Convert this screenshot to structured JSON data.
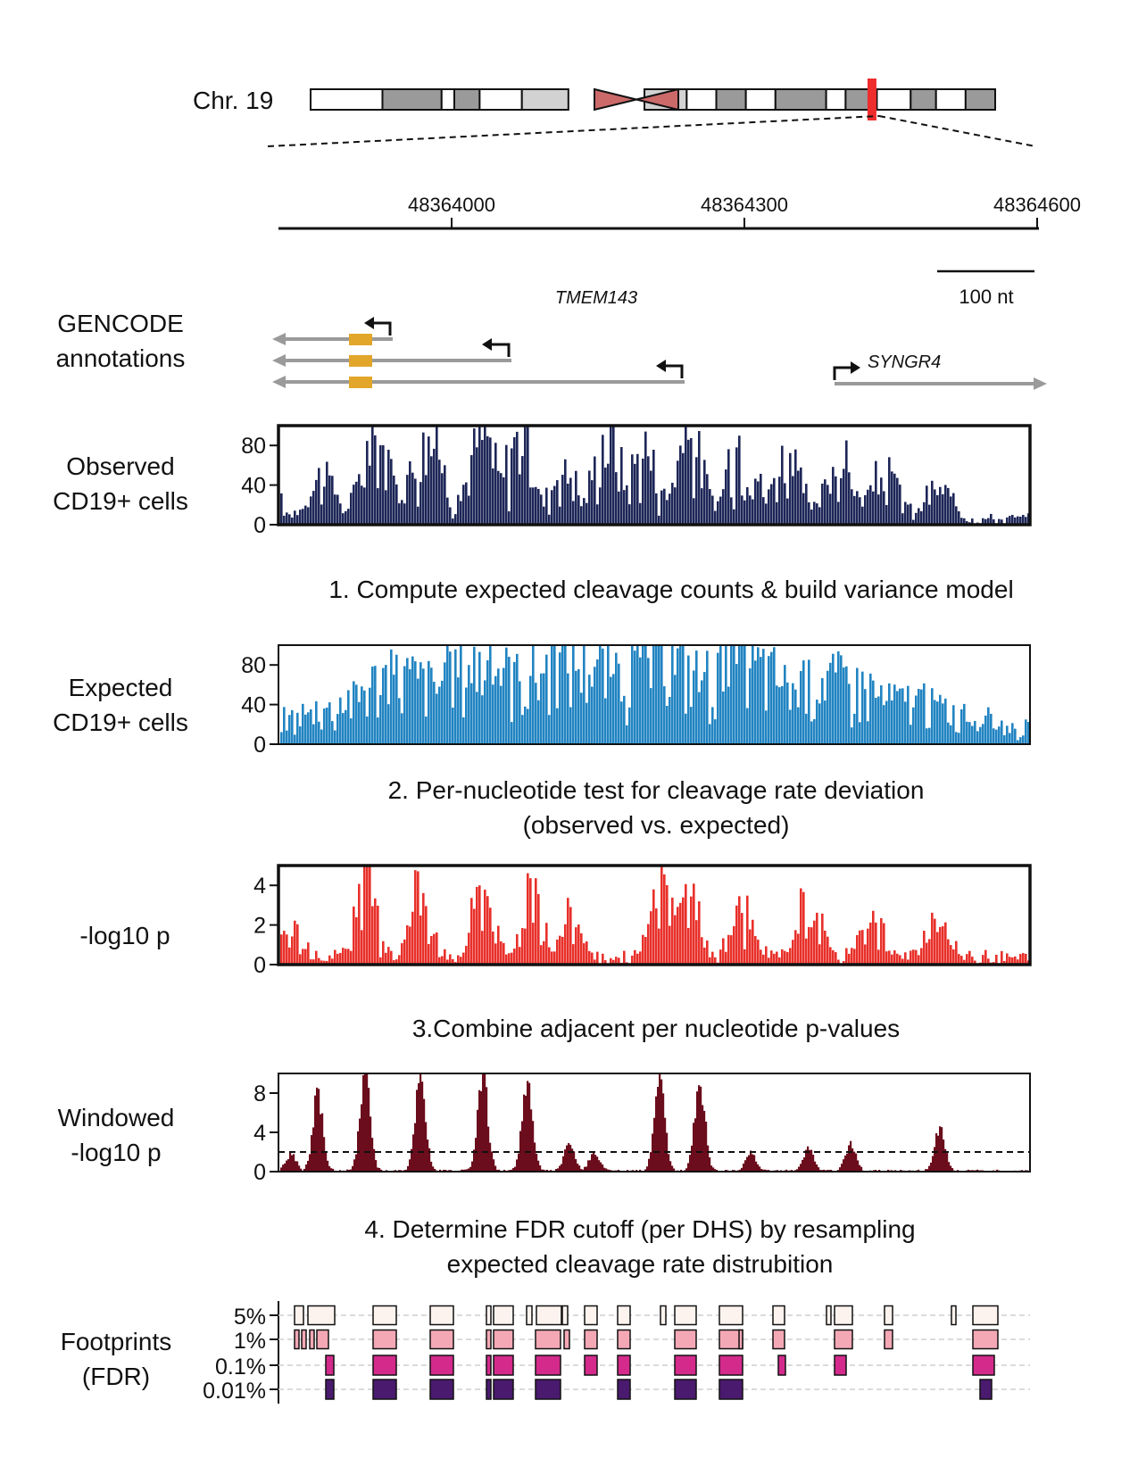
{
  "ideogram": {
    "label": "Chr. 19",
    "bands": [
      "white",
      "#9a9a9a",
      "white",
      "#9a9a9a",
      "white",
      "#d2d2d2",
      "cen",
      "cen",
      "#d2d2d2",
      "white",
      "#9a9a9a",
      "white",
      "#9a9a9a",
      "white",
      "#9a9a9a",
      "white",
      "#9a9a9a",
      "white",
      "#9a9a9a"
    ],
    "band_weights": [
      8.5,
      7,
      1.5,
      3,
      5,
      5.5,
      4.5,
      4.5,
      5,
      3.5,
      3.5,
      3.5,
      6,
      2.3,
      3.7,
      4,
      3,
      3.5,
      3.5
    ],
    "centromere_color": "#cc6a6a",
    "highlight_color": "#ef2d2d",
    "highlight_fraction": 0.82
  },
  "coordinates": {
    "ticks": [
      "48364000",
      "48364300",
      "48364600"
    ],
    "start": 48363824,
    "end": 48364606,
    "scale_bar": "100 nt",
    "scale_bar_nt": 100
  },
  "genes": {
    "label_line1": "GENCODE",
    "label_line2": "annotations",
    "tmem_label": "TMEM143",
    "syngr_label": "SYNGR4",
    "transcript_color": "#9a9a9a",
    "exon_color": "#e2a62a"
  },
  "tracks": {
    "observed": {
      "label_line1": "Observed",
      "label_line2": "CD19+ cells",
      "ticks": [
        "80",
        "40",
        "0"
      ],
      "color": "#1d2657"
    },
    "expected": {
      "label_line1": "Expected",
      "label_line2": "CD19+ cells",
      "ticks": [
        "80",
        "40",
        "0"
      ],
      "color": "#2184c2"
    },
    "pvalue": {
      "label": "-log10 p",
      "ticks": [
        "4",
        "2",
        "0"
      ],
      "color": "#e8302a"
    },
    "windowed": {
      "label_line1": "Windowed",
      "label_line2": "-log10 p",
      "ticks": [
        "8",
        "4",
        "0"
      ],
      "color": "#6b0d1c"
    }
  },
  "steps": {
    "step1": "1. Compute expected cleavage counts & build variance model",
    "step2_line1": "2. Per-nucleotide test for cleavage rate deviation",
    "step2_line2": "(observed vs. expected)",
    "step3": "3.Combine adjacent per nucleotide p-values",
    "step4_line1": "4. Determine FDR cutoff (per DHS) by resampling",
    "step4_line2": "expected cleavage rate distrubition"
  },
  "footprints": {
    "label_line1": "Footprints",
    "label_line2": "(FDR)",
    "levels": [
      "5%",
      "1%",
      "0.1%",
      "0.01%"
    ],
    "colors": [
      "#fdf3ee",
      "#f4a8b5",
      "#d42a8c",
      "#4a1a6e"
    ]
  },
  "chart_data": {
    "type": "bar",
    "x_range": [
      48363824,
      48364606
    ],
    "series": [
      {
        "name": "Observed CD19+ cells",
        "ylim": [
          0,
          100
        ],
        "peaks": [
          [
            290,
            60
          ],
          [
            360,
            52
          ],
          [
            420,
            100
          ],
          [
            470,
            80
          ],
          [
            480,
            100
          ],
          [
            540,
            100
          ],
          [
            580,
            100
          ],
          [
            630,
            60
          ],
          [
            680,
            100
          ],
          [
            720,
            85
          ],
          [
            770,
            100
          ],
          [
            830,
            100
          ],
          [
            880,
            75
          ],
          [
            940,
            70
          ],
          [
            990,
            55
          ],
          [
            1050,
            35
          ]
        ]
      },
      {
        "name": "Expected CD19+ cells",
        "ylim": [
          0,
          100
        ],
        "peaks": [
          [
            330,
            18
          ],
          [
            380,
            40
          ],
          [
            450,
            80
          ],
          [
            540,
            95
          ],
          [
            640,
            100
          ],
          [
            740,
            100
          ],
          [
            830,
            95
          ],
          [
            930,
            78
          ],
          [
            1010,
            50
          ],
          [
            1080,
            25
          ]
        ]
      },
      {
        "name": "-log10 p",
        "ylim": [
          0,
          5
        ],
        "peaks": [
          [
            325,
            1.5
          ],
          [
            410,
            4.5
          ],
          [
            470,
            4.5
          ],
          [
            540,
            4.5
          ],
          [
            595,
            4.5
          ],
          [
            640,
            2.5
          ],
          [
            740,
            4.5
          ],
          [
            770,
            4
          ],
          [
            830,
            3
          ],
          [
            905,
            4
          ],
          [
            975,
            3
          ],
          [
            1050,
            2.5
          ]
        ]
      },
      {
        "name": "Windowed -log10 p",
        "ylim": [
          0,
          10
        ],
        "threshold": 2,
        "peaks": [
          [
            325,
            1.8
          ],
          [
            355,
            8
          ],
          [
            408,
            10
          ],
          [
            470,
            10
          ],
          [
            540,
            10
          ],
          [
            590,
            10
          ],
          [
            637,
            3
          ],
          [
            665,
            2
          ],
          [
            738,
            10
          ],
          [
            783,
            10
          ],
          [
            840,
            2
          ],
          [
            905,
            2.5
          ],
          [
            952,
            3
          ],
          [
            1052,
            4.5
          ]
        ]
      }
    ]
  }
}
